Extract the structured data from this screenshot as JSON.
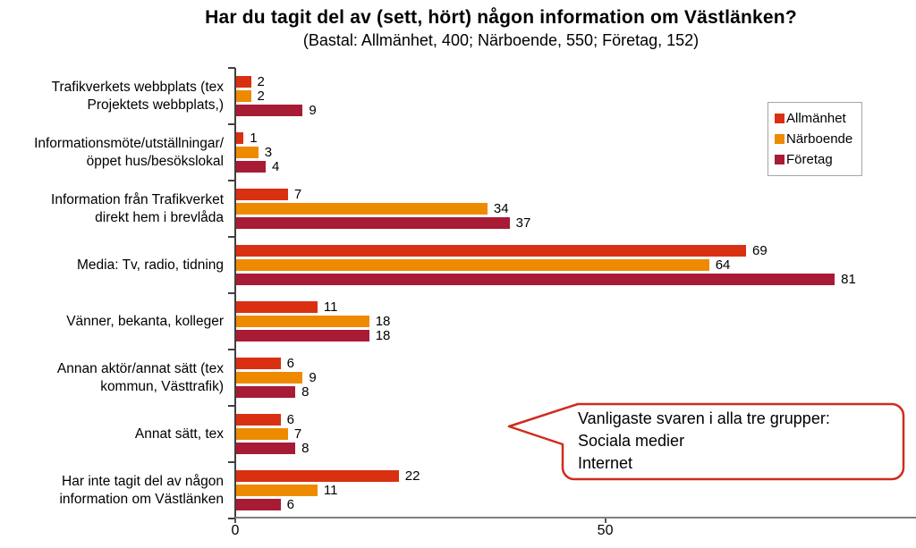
{
  "header": {
    "title": "Har du tagit del av (sett, hört) någon information om Västlänken?",
    "subtitle": "(Bastal: Allmänhet, 400; Närboende, 550; Företag, 152)"
  },
  "chart_data": {
    "type": "bar",
    "orientation": "horizontal",
    "title": "Har du tagit del av (sett, hört) någon information om Västlänken?",
    "subtitle": "(Bastal: Allmänhet, 400; Närboende, 550; Företag, 152)",
    "categories": [
      "Trafikverkets webbplats (tex\nProjektets webbplats,)",
      "Informationsmöte/utställningar/\nöppet hus/besökslokal",
      "Information från Trafikverket\ndirekt hem i brevlåda",
      "Media: Tv, radio, tidning",
      "Vänner, bekanta, kolleger",
      "Annan aktör/annat sätt (tex\nkommun, Västtrafik)",
      "Annat sätt, tex",
      "Har inte tagit del av någon\ninformation om Västlänken"
    ],
    "series": [
      {
        "name": "Allmänhet",
        "key": "allmanhet",
        "color": "#d93012",
        "values": [
          2,
          1,
          7,
          69,
          11,
          6,
          6,
          22
        ]
      },
      {
        "name": "Närboende",
        "key": "narboende",
        "color": "#ee8a00",
        "values": [
          2,
          3,
          34,
          64,
          18,
          9,
          7,
          11
        ]
      },
      {
        "name": "Företag",
        "key": "foretag",
        "color": "#a81b35",
        "values": [
          9,
          4,
          37,
          81,
          18,
          8,
          8,
          6
        ]
      }
    ],
    "x_ticks": [
      0,
      50
    ],
    "xlim": [
      0,
      92
    ],
    "xlabel": "",
    "ylabel": "",
    "grid": false,
    "legend_position": "top-right",
    "value_labels": true
  },
  "callout": {
    "text": "Vanligaste svaren i alla tre grupper:\nSociala medier\nInternet",
    "border_color": "#d02b1e"
  },
  "colors": {
    "axis": "#404040",
    "x_axis": "#808080",
    "legend_border": "#a6a6a6",
    "text": "#000000",
    "background": "#ffffff"
  }
}
